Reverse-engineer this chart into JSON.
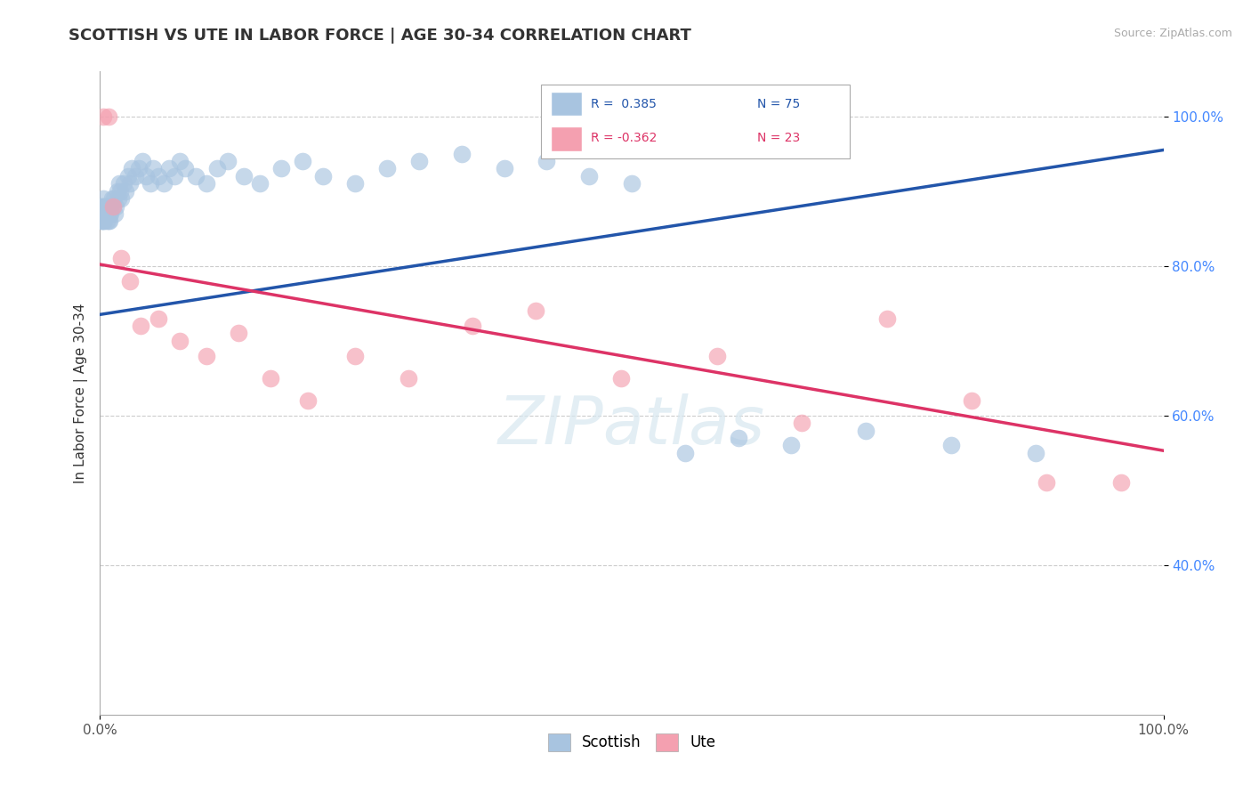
{
  "title": "SCOTTISH VS UTE IN LABOR FORCE | AGE 30-34 CORRELATION CHART",
  "source_text": "Source: ZipAtlas.com",
  "ylabel": "In Labor Force | Age 30-34",
  "xlim": [
    0.0,
    1.0
  ],
  "ylim": [
    0.2,
    1.06
  ],
  "x_ticks": [
    0.0,
    1.0
  ],
  "x_tick_labels": [
    "0.0%",
    "100.0%"
  ],
  "y_ticks": [
    0.4,
    0.6,
    0.8,
    1.0
  ],
  "y_tick_labels": [
    "40.0%",
    "60.0%",
    "80.0%",
    "100.0%"
  ],
  "legend_r_scottish": "R =  0.385",
  "legend_n_scottish": "N = 75",
  "legend_r_ute": "R = -0.362",
  "legend_n_ute": "N = 23",
  "scottish_color": "#a8c4e0",
  "ute_color": "#f4a0b0",
  "scottish_line_color": "#2255aa",
  "ute_line_color": "#dd3366",
  "scottish_line_x0": 0.0,
  "scottish_line_y0": 0.735,
  "scottish_line_x1": 1.0,
  "scottish_line_y1": 0.955,
  "ute_line_x0": 0.0,
  "ute_line_y0": 0.802,
  "ute_line_x1": 1.0,
  "ute_line_y1": 0.553,
  "scottish_x": [
    0.001,
    0.001,
    0.001,
    0.002,
    0.002,
    0.002,
    0.003,
    0.003,
    0.003,
    0.004,
    0.004,
    0.004,
    0.005,
    0.005,
    0.005,
    0.006,
    0.006,
    0.007,
    0.007,
    0.008,
    0.008,
    0.009,
    0.009,
    0.01,
    0.01,
    0.011,
    0.012,
    0.013,
    0.014,
    0.015,
    0.016,
    0.017,
    0.018,
    0.019,
    0.02,
    0.022,
    0.024,
    0.026,
    0.028,
    0.03,
    0.033,
    0.036,
    0.04,
    0.043,
    0.047,
    0.05,
    0.055,
    0.06,
    0.065,
    0.07,
    0.075,
    0.08,
    0.09,
    0.1,
    0.11,
    0.12,
    0.135,
    0.15,
    0.17,
    0.19,
    0.21,
    0.24,
    0.27,
    0.3,
    0.34,
    0.38,
    0.42,
    0.46,
    0.5,
    0.55,
    0.6,
    0.65,
    0.72,
    0.8,
    0.88
  ],
  "scottish_y": [
    0.86,
    0.87,
    0.88,
    0.86,
    0.87,
    0.88,
    0.86,
    0.87,
    0.89,
    0.87,
    0.88,
    0.86,
    0.87,
    0.88,
    0.87,
    0.86,
    0.87,
    0.88,
    0.87,
    0.86,
    0.88,
    0.87,
    0.86,
    0.87,
    0.88,
    0.89,
    0.88,
    0.89,
    0.87,
    0.88,
    0.9,
    0.89,
    0.91,
    0.9,
    0.89,
    0.91,
    0.9,
    0.92,
    0.91,
    0.93,
    0.92,
    0.93,
    0.94,
    0.92,
    0.91,
    0.93,
    0.92,
    0.91,
    0.93,
    0.92,
    0.94,
    0.93,
    0.92,
    0.91,
    0.93,
    0.94,
    0.92,
    0.91,
    0.93,
    0.94,
    0.92,
    0.91,
    0.93,
    0.94,
    0.95,
    0.93,
    0.94,
    0.92,
    0.91,
    0.55,
    0.57,
    0.56,
    0.58,
    0.56,
    0.55
  ],
  "ute_x": [
    0.003,
    0.008,
    0.012,
    0.02,
    0.028,
    0.038,
    0.055,
    0.075,
    0.1,
    0.13,
    0.16,
    0.195,
    0.24,
    0.29,
    0.35,
    0.41,
    0.49,
    0.58,
    0.66,
    0.74,
    0.82,
    0.89,
    0.96
  ],
  "ute_y": [
    1.0,
    1.0,
    0.88,
    0.81,
    0.78,
    0.72,
    0.73,
    0.7,
    0.68,
    0.71,
    0.65,
    0.62,
    0.68,
    0.65,
    0.72,
    0.74,
    0.65,
    0.68,
    0.59,
    0.73,
    0.62,
    0.51,
    0.51
  ]
}
